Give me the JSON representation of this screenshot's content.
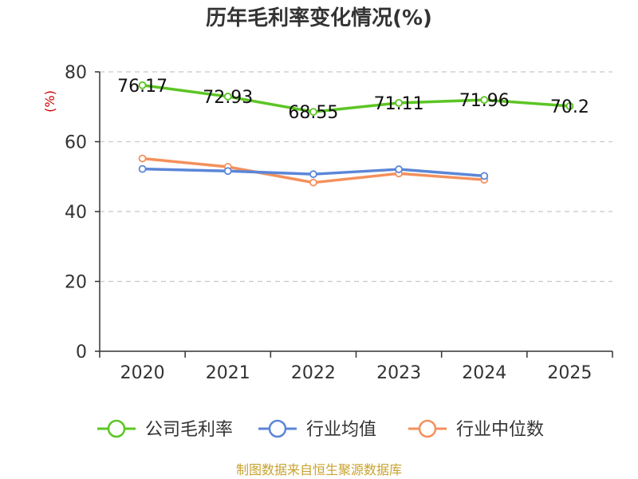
{
  "chart_data": {
    "type": "line",
    "title": "历年毛利率变化情况(%)",
    "ylabel": "(%)",
    "categories": [
      "2020",
      "2021",
      "2022",
      "2023",
      "2024",
      "2025"
    ],
    "ylim": [
      0,
      80
    ],
    "yticks": [
      0,
      20,
      40,
      60,
      80
    ],
    "grid": true,
    "legend_position": "bottom",
    "series": [
      {
        "name": "公司毛利率",
        "color": "#5cc524",
        "values": [
          76.17,
          72.93,
          68.55,
          71.11,
          71.96,
          70.2
        ],
        "labels": [
          "76.17",
          "72.93",
          "68.55",
          "71.11",
          "71.96",
          "70.2"
        ]
      },
      {
        "name": "行业均值",
        "color": "#5b86d8",
        "values": [
          52.2,
          51.6,
          50.7,
          52.1,
          50.2,
          null
        ]
      },
      {
        "name": "行业中位数",
        "color": "#f4905c",
        "values": [
          55.2,
          52.8,
          48.3,
          50.9,
          49.1,
          null
        ]
      }
    ],
    "source": "制图数据来自恒生聚源数据库"
  }
}
